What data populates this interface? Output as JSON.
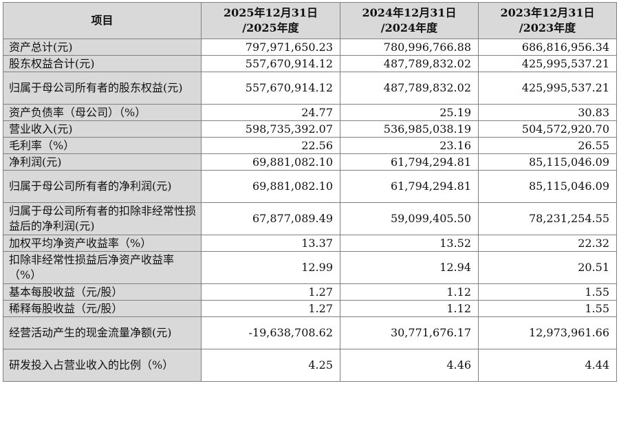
{
  "header": {
    "item": "项目",
    "years": [
      {
        "line1": "2025年12月31日",
        "line2": "/2025年度"
      },
      {
        "line1": "2024年12月31日",
        "line2": "/2024年度"
      },
      {
        "line1": "2023年12月31日",
        "line2": "/2023年度"
      }
    ]
  },
  "rows": [
    {
      "label": "资产总计(元)",
      "values": [
        "797,971,650.23",
        "780,996,766.88",
        "686,816,956.34"
      ]
    },
    {
      "label": "股东权益合计(元)",
      "values": [
        "557,670,914.12",
        "487,789,832.02",
        "425,995,537.21"
      ]
    },
    {
      "label": "归属于母公司所有者的股东权益(元)",
      "values": [
        "557,670,914.12",
        "487,789,832.02",
        "425,995,537.21"
      ]
    },
    {
      "label": "资产负债率（母公司）（%）",
      "values": [
        "24.77",
        "25.19",
        "30.83"
      ]
    },
    {
      "label": "营业收入(元)",
      "values": [
        "598,735,392.07",
        "536,985,038.19",
        "504,572,920.70"
      ]
    },
    {
      "label": "毛利率（%）",
      "values": [
        "22.56",
        "23.16",
        "26.55"
      ]
    },
    {
      "label": "净利润(元)",
      "values": [
        "69,881,082.10",
        "61,794,294.81",
        "85,115,046.09"
      ]
    },
    {
      "label": "归属于母公司所有者的净利润(元)",
      "values": [
        "69,881,082.10",
        "61,794,294.81",
        "85,115,046.09"
      ]
    },
    {
      "label": "归属于母公司所有者的扣除非经常性损益后的净利润(元)",
      "values": [
        "67,877,089.49",
        "59,099,405.50",
        "78,231,254.55"
      ]
    },
    {
      "label": "加权平均净资产收益率（%）",
      "values": [
        "13.37",
        "13.52",
        "22.32"
      ]
    },
    {
      "label": "扣除非经常性损益后净资产收益率（%）",
      "values": [
        "12.99",
        "12.94",
        "20.51"
      ]
    },
    {
      "label": "基本每股收益（元/股）",
      "values": [
        "1.27",
        "1.12",
        "1.55"
      ]
    },
    {
      "label": "稀释每股收益（元/股）",
      "values": [
        "1.27",
        "1.12",
        "1.55"
      ]
    },
    {
      "label": "经营活动产生的现金流量净额(元)",
      "values": [
        "-19,638,708.62",
        "30,771,676.17",
        "12,973,961.66"
      ]
    },
    {
      "label": "研发投入占营业收入的比例（%）",
      "values": [
        "4.25",
        "4.46",
        "4.44"
      ]
    }
  ]
}
